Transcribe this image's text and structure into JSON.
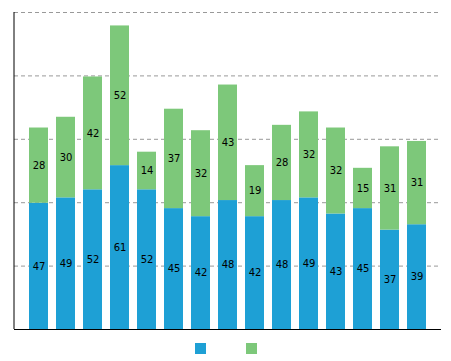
{
  "chart_data": {
    "type": "bar",
    "stacked": true,
    "categories": [
      null,
      null,
      null,
      null,
      null,
      null,
      null,
      null,
      null,
      null,
      null,
      null,
      null,
      null,
      null
    ],
    "series": [
      {
        "color": "#1ea0d5",
        "values": [
          47,
          49,
          52,
          61,
          52,
          45,
          42,
          48,
          42,
          48,
          49,
          43,
          45,
          37,
          39
        ]
      },
      {
        "color": "#7dc87a",
        "values": [
          28,
          30,
          42,
          52,
          14,
          37,
          32,
          43,
          19,
          28,
          32,
          32,
          15,
          31,
          31
        ]
      }
    ],
    "ylim": [
      0,
      118
    ],
    "yticks": [
      0,
      23.6,
      47.2,
      70.8,
      94.4,
      118
    ],
    "grid": true,
    "tick_labels": false,
    "data_labels": true,
    "legend": "bottom"
  }
}
